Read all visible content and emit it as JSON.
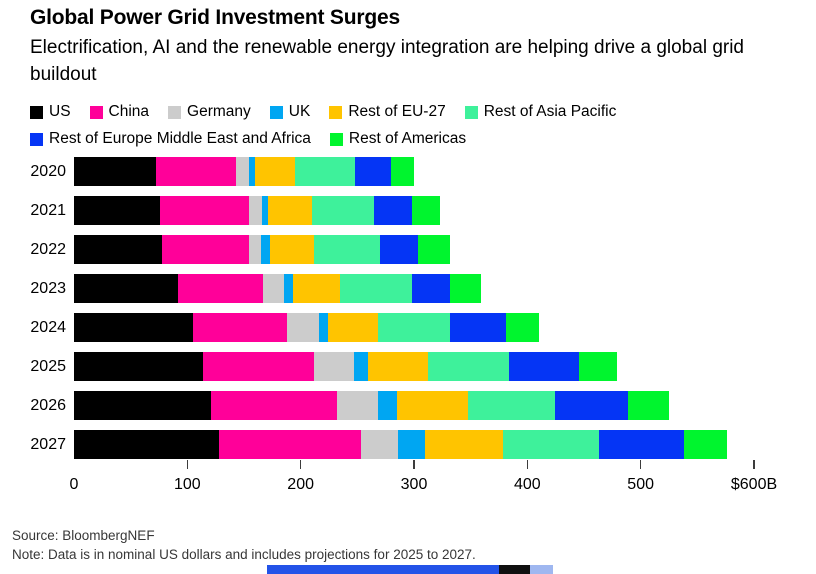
{
  "title": "Global Power Grid Investment Surges",
  "subtitle": "Electrification, AI and the renewable energy integration are helping drive a global grid buildout",
  "footer": {
    "source": "Source: BloombergNEF",
    "note": "Note: Data is in nominal US dollars and includes projections for 2025 to 2027."
  },
  "chart_data": {
    "type": "bar",
    "orientation": "horizontal",
    "stacked": true,
    "unit": "billion USD",
    "categories": [
      "2020",
      "2021",
      "2022",
      "2023",
      "2024",
      "2025",
      "2026",
      "2027"
    ],
    "series": [
      {
        "name": "US",
        "color": "#000000",
        "values": [
          72,
          76,
          78,
          92,
          105,
          114,
          121,
          128
        ]
      },
      {
        "name": "China",
        "color": "#FF0099",
        "values": [
          71,
          78,
          76,
          75,
          83,
          98,
          111,
          125
        ]
      },
      {
        "name": "Germany",
        "color": "#CCCCCC",
        "values": [
          11,
          12,
          11,
          18,
          28,
          35,
          36,
          33
        ]
      },
      {
        "name": "UK",
        "color": "#00A6F2",
        "values": [
          6,
          5,
          8,
          8,
          8,
          12,
          17,
          24
        ]
      },
      {
        "name": "Rest of EU-27",
        "color": "#FFC400",
        "values": [
          35,
          39,
          39,
          42,
          44,
          53,
          63,
          69
        ]
      },
      {
        "name": "Rest of Asia Pacific",
        "color": "#3EF19B",
        "values": [
          53,
          55,
          58,
          63,
          64,
          72,
          76,
          84
        ]
      },
      {
        "name": "Rest of Europe Middle East and Africa",
        "color": "#0535F5",
        "values": [
          32,
          33,
          34,
          34,
          49,
          62,
          65,
          75
        ]
      },
      {
        "name": "Rest of Americas",
        "color": "#00F52E",
        "values": [
          20,
          25,
          28,
          27,
          29,
          33,
          36,
          38
        ]
      }
    ],
    "totals": [
      300,
      323,
      332,
      359,
      410,
      479,
      525,
      576
    ],
    "xlim": [
      0,
      600
    ],
    "xticks": [
      {
        "value": 0,
        "label": "0",
        "mark": false
      },
      {
        "value": 100,
        "label": "100",
        "mark": true
      },
      {
        "value": 200,
        "label": "200",
        "mark": true
      },
      {
        "value": 300,
        "label": "300",
        "mark": true
      },
      {
        "value": 400,
        "label": "400",
        "mark": true
      },
      {
        "value": 500,
        "label": "500",
        "mark": true
      },
      {
        "value": 600,
        "label": "$600B",
        "mark": true
      }
    ],
    "grid": false,
    "legend_position": "top"
  },
  "bottom_strip": {
    "segments": [
      {
        "color": "#2353E8",
        "width_pct": 81
      },
      {
        "color": "#101010",
        "width_pct": 11
      },
      {
        "color": "#9FB7F0",
        "width_pct": 8
      }
    ]
  }
}
